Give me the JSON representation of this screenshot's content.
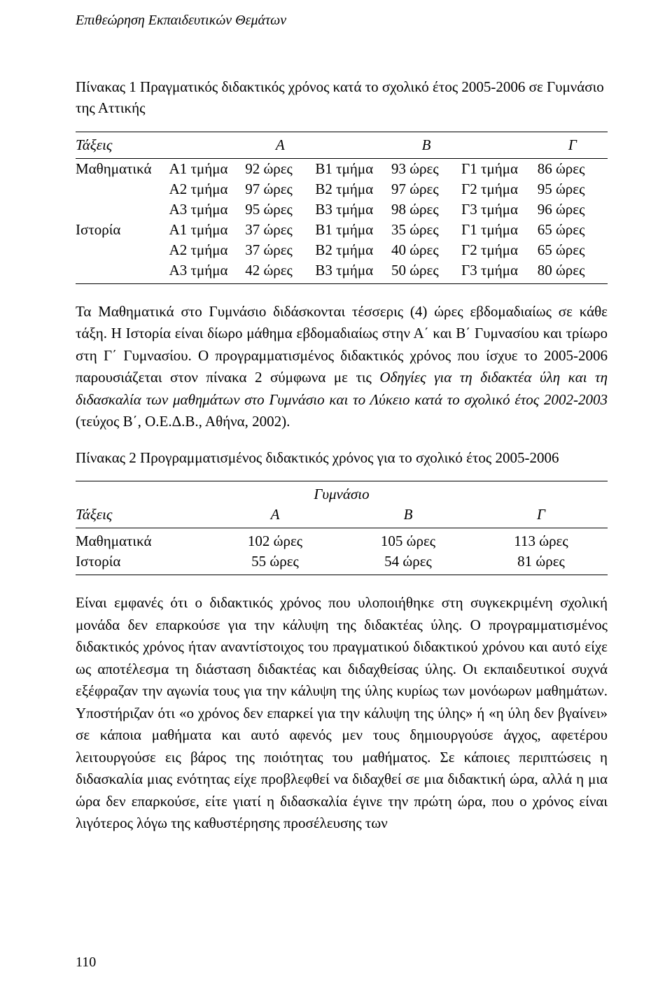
{
  "header": "Επιθεώρηση Εκπαιδευτικών Θεμάτων",
  "table1": {
    "caption": "Πίνακας 1 Πραγματικός διδακτικός χρόνος κατά το σχολικό έτος 2005-2006 σε Γυμνάσιο της Αττικής",
    "headers": {
      "taxeis": "Τάξεις",
      "A": "Α",
      "B": "Β",
      "C": "Γ"
    },
    "subjects": {
      "math": "Μαθηματικά",
      "history": "Ιστορία"
    },
    "rows": [
      {
        "subject": "math",
        "a_sec": "Α1 τμήμα",
        "a_val": "92 ώρες",
        "b_sec": "Β1 τμήμα",
        "b_val": "93 ώρες",
        "c_sec": "Γ1 τμήμα",
        "c_val": "86 ώρες"
      },
      {
        "subject": "",
        "a_sec": "Α2 τμήμα",
        "a_val": "97 ώρες",
        "b_sec": "Β2 τμήμα",
        "b_val": "97 ώρες",
        "c_sec": "Γ2 τμήμα",
        "c_val": "95 ώρες"
      },
      {
        "subject": "",
        "a_sec": "Α3 τμήμα",
        "a_val": "95 ώρες",
        "b_sec": "Β3 τμήμα",
        "b_val": "98 ώρες",
        "c_sec": "Γ3 τμήμα",
        "c_val": "96 ώρες"
      },
      {
        "subject": "history",
        "a_sec": "Α1 τμήμα",
        "a_val": "37 ώρες",
        "b_sec": "Β1 τμήμα",
        "b_val": "35 ώρες",
        "c_sec": "Γ1 τμήμα",
        "c_val": "65 ώρες"
      },
      {
        "subject": "",
        "a_sec": "Α2 τμήμα",
        "a_val": "37 ώρες",
        "b_sec": "Β2 τμήμα",
        "b_val": "40 ώρες",
        "c_sec": "Γ2 τμήμα",
        "c_val": "65 ώρες"
      },
      {
        "subject": "",
        "a_sec": "Α3 τμήμα",
        "a_val": "42 ώρες",
        "b_sec": "Β3 τμήμα",
        "b_val": "50 ώρες",
        "c_sec": "Γ3 τμήμα",
        "c_val": "80 ώρες"
      }
    ]
  },
  "para1": {
    "t1": "Τα Μαθηματικά στο Γυμνάσιο διδάσκονται τέσσερις (4) ώρες εβδομαδιαίως σε κάθε τάξη. Η Ιστορία είναι δίωρο μάθημα εβδομαδιαίως στην Α΄ και Β΄ Γυμνασίου και τρίωρο στη Γ΄ Γυμνασίου. Ο προγραμματισμένος διδακτικός χρόνος που ίσχυε το 2005-2006 παρουσιάζεται στον πίνακα 2 σύμφωνα με τις ",
    "italic": "Οδηγίες για τη διδακτέα ύλη και τη διδασκαλία των μαθημάτων στο Γυμνάσιο και το Λύκειο κατά το σχολικό έτος 2002-2003",
    "t2": " (τεύχος Β΄, Ο.Ε.Δ.Β., Αθήνα, 2002)."
  },
  "table2": {
    "caption": "Πίνακας 2 Προγραμματισμένος διδακτικός χρόνος για το σχολικό έτος 2005-2006",
    "gymnasio": "Γυμνάσιο",
    "headers": {
      "taxeis": "Τάξεις",
      "A": "Α",
      "B": "Β",
      "C": "Γ"
    },
    "rows": [
      {
        "subject": "Μαθηματικά",
        "a": "102 ώρες",
        "b": "105 ώρες",
        "c": "113 ώρες"
      },
      {
        "subject": "Ιστορία",
        "a": "55 ώρες",
        "b": "54 ώρες",
        "c": "81 ώρες"
      }
    ]
  },
  "para2": "Είναι εμφανές ότι ο διδακτικός χρόνος που υλοποιήθηκε στη συγκεκριμένη σχολική μονάδα δεν επαρκούσε για την κάλυψη της διδακτέας ύλης. Ο προγραμματισμένος διδακτικός χρόνος ήταν αναντίστοιχος του πραγματικού διδακτικού χρόνου και αυτό είχε ως αποτέλεσμα τη διάσταση διδακτέας και διδαχθείσας ύλης. Οι εκπαιδευτικοί συχνά εξέφραζαν την αγωνία τους για την κάλυψη της ύλης κυρίως των μονόωρων μαθημάτων. Υποστήριζαν ότι «ο χρόνος δεν επαρκεί για την κάλυψη της ύλης» ή «η ύλη δεν βγαίνει» σε κάποια μαθήματα και αυτό αφενός μεν τους δημιουργούσε άγχος, αφετέρου λειτουργούσε εις βάρος της ποιότητας του μαθήματος. Σε κάποιες περιπτώσεις η διδασκαλία μιας ενότητας είχε προβλεφθεί να διδαχθεί σε μια διδακτική ώρα, αλλά η μια ώρα δεν επαρκούσε, είτε γιατί η διδασκαλία έγινε την πρώτη ώρα, που ο χρόνος είναι λιγότερος λόγω της καθυστέρησης προσέλευσης των",
  "page_number": "110"
}
